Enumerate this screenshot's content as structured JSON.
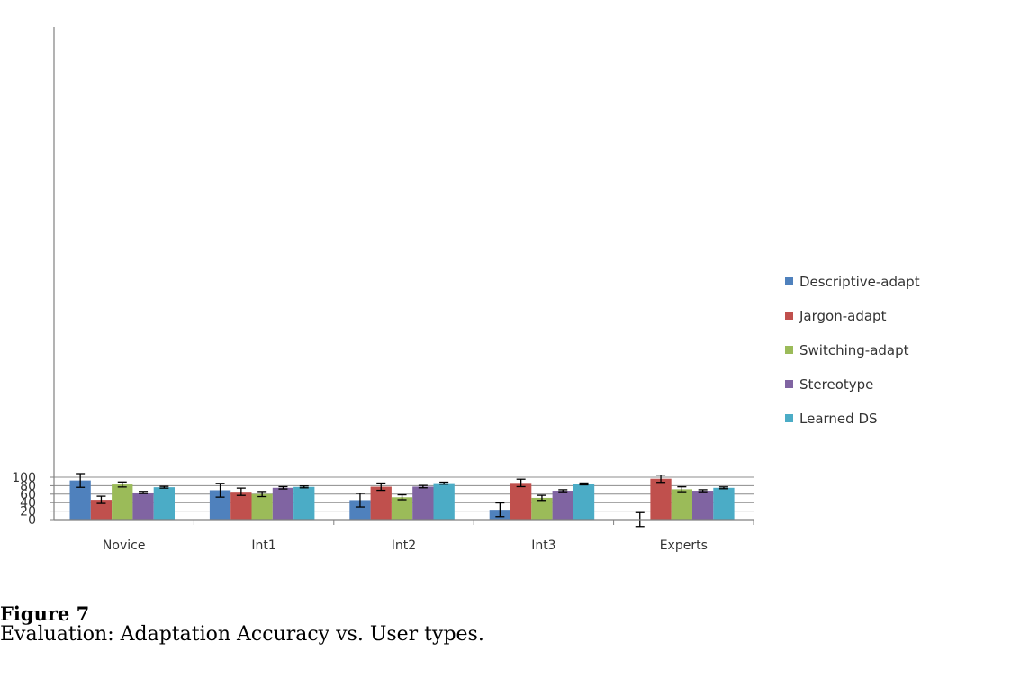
{
  "chart_data": {
    "type": "bar",
    "categories": [
      "Novice",
      "Int1",
      "Int2",
      "Int3",
      "Experts"
    ],
    "series": [
      {
        "name": "Descriptive-adapt",
        "color": "#4f81bd",
        "values": [
          92.3,
          69.2,
          45.9,
          23.1,
          0
        ],
        "errors": [
          16.2,
          16.3,
          16.2,
          16.2,
          16.5
        ]
      },
      {
        "name": "Jargon-adapt",
        "color": "#c0504d",
        "values": [
          46.6,
          65.6,
          77.6,
          86.5,
          96.4
        ],
        "errors": [
          8.5,
          8.6,
          8.6,
          8.8,
          8.6
        ]
      },
      {
        "name": "Switching-adapt",
        "color": "#9bbb59",
        "values": [
          82.8,
          60.2,
          52.6,
          51.2,
          71.5
        ],
        "errors": [
          5.9,
          6.0,
          5.8,
          6.0,
          5.8
        ]
      },
      {
        "name": "Stereotype",
        "color": "#8064a2",
        "values": [
          63.9,
          74.9,
          77.8,
          68.0,
          68.0
        ],
        "errors": [
          2.5,
          2.7,
          2.8,
          2.4,
          2.4
        ]
      },
      {
        "name": "Learned DS",
        "color": "#4bacc6",
        "values": [
          76.3,
          77.1,
          85.9,
          84.1,
          74.9
        ],
        "errors": [
          2.1,
          2.2,
          2.4,
          2.2,
          2.1
        ]
      }
    ],
    "yticks": [
      0,
      20,
      40,
      60,
      80,
      100
    ],
    "ylim": [
      0,
      120
    ],
    "grid": true,
    "legend_position": "right"
  },
  "caption": {
    "figure_number": "Figure 7",
    "text": "Evaluation: Adaptation Accuracy vs. User types."
  }
}
